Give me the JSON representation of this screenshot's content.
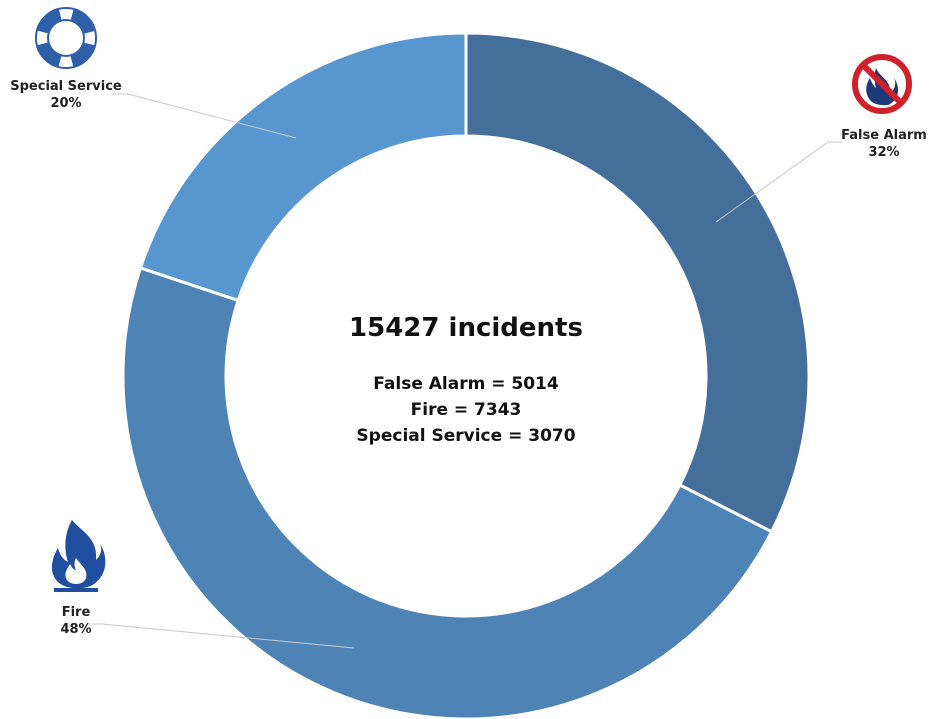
{
  "chart_data": {
    "type": "donut",
    "center_title": "15427 incidents",
    "center_lines": [
      "False Alarm = 5014",
      "Fire = 7343",
      "Special Service = 3070"
    ],
    "series": [
      {
        "name": "False Alarm",
        "value": 5014,
        "percent_label": "32%",
        "color": "#436f9a",
        "icon": "no-fire-icon"
      },
      {
        "name": "Fire",
        "value": 7343,
        "percent_label": "48%",
        "color": "#4e83b6",
        "icon": "flame-icon"
      },
      {
        "name": "Special Service",
        "value": 3070,
        "percent_label": "20%",
        "color": "#5796ce",
        "icon": "life-ring-icon"
      }
    ]
  }
}
